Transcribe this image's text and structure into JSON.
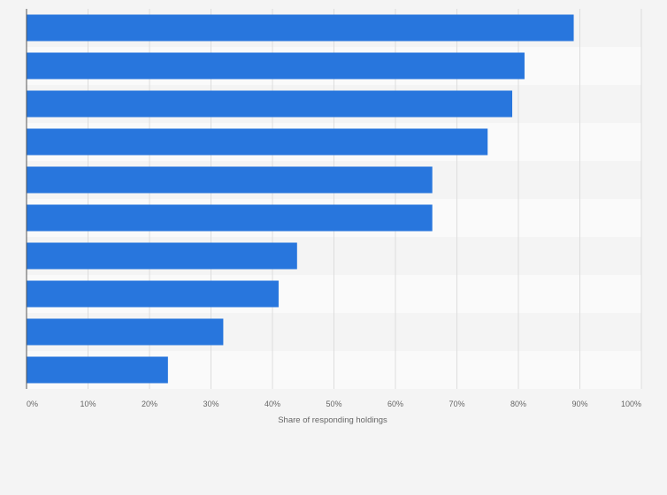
{
  "chart_data": {
    "type": "bar",
    "orientation": "horizontal",
    "categories": [
      "",
      "",
      "",
      "",
      "",
      "",
      "",
      "",
      "",
      ""
    ],
    "values": [
      89,
      81,
      79,
      75,
      66,
      66,
      44,
      41,
      32,
      23
    ],
    "xlabel": "Share of responding holdings",
    "ylabel": "",
    "xlim": [
      0,
      100
    ],
    "xticks": [
      "0%",
      "10%",
      "20%",
      "30%",
      "40%",
      "50%",
      "60%",
      "70%",
      "80%",
      "90%",
      "100%"
    ],
    "grid": true,
    "bar_color": "#2876dd",
    "band_colors": [
      "#f4f4f4",
      "#fafafa"
    ]
  }
}
